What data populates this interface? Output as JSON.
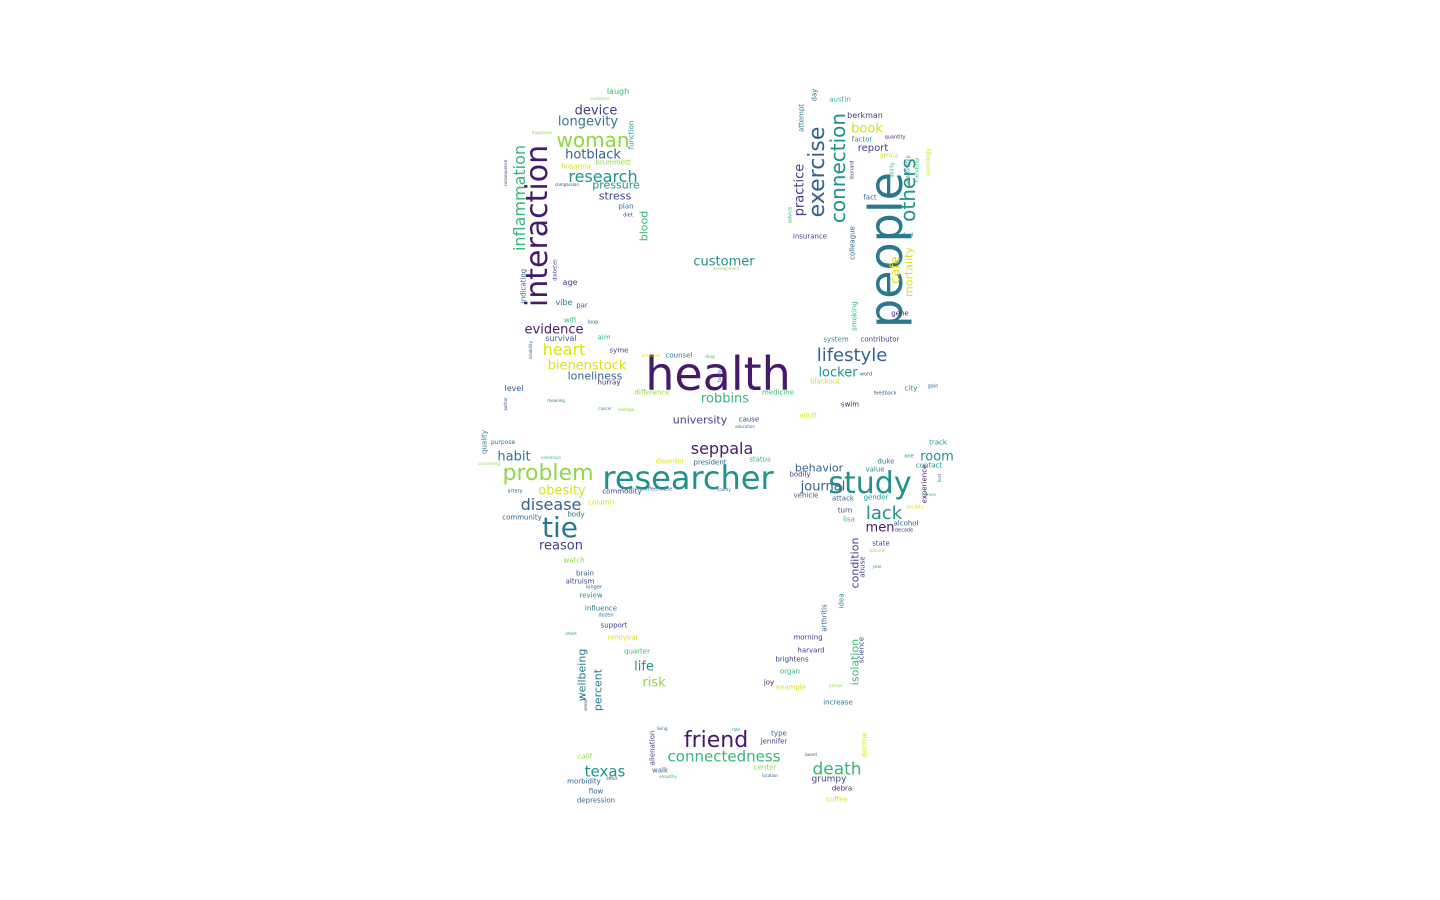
{
  "word_cloud": {
    "palette": {
      "p": "#46196b",
      "b": "#33638d",
      "t": "#21918c",
      "g": "#35b779",
      "l": "#8fd744",
      "y": "#d8e219",
      "n": "#2a788e",
      "k": "#433e85"
    },
    "words": [
      "health",
      "people",
      "researcher",
      "interaction",
      "study",
      "exercise",
      "connection",
      "tie",
      "others",
      "friend",
      "problem",
      "woman",
      "lifestyle",
      "inflammation",
      "research",
      "heart",
      "lack",
      "death",
      "seppala",
      "disease",
      "connectedness",
      "texas",
      "customer",
      "bienenstock",
      "evidence",
      "device",
      "longevity",
      "hotblack",
      "practice",
      "book",
      "mortality",
      "cafe",
      "robbins",
      "locker",
      "journal",
      "room",
      "obesity",
      "habit",
      "reason",
      "life",
      "risk",
      "loneliness",
      "pressure",
      "stress",
      "blood",
      "university",
      "men",
      "behavior",
      "condition",
      "isolation",
      "wellbeing",
      "percent",
      "report",
      "laugh",
      "function",
      "plan",
      "diet",
      "age",
      "vibe",
      "par",
      "wifi",
      "loop",
      "survival",
      "aim",
      "syme",
      "level",
      "hurray",
      "difference",
      "counsel",
      "medicine",
      "cause",
      "education",
      "blackout",
      "adult",
      "swim",
      "city",
      "gain",
      "feedback",
      "word",
      "system",
      "contributor",
      "gene",
      "smoking",
      "colleague",
      "insurance",
      "advice",
      "attempt",
      "day",
      "austin",
      "berkman",
      "factor",
      "quantity",
      "ymca",
      "ability",
      "leonard",
      "fact",
      "stanford",
      "sociology",
      "friendship",
      "relationship",
      "development",
      "indicating",
      "diabetes",
      "disability",
      "author",
      "meaning",
      "cancer",
      "damage",
      "brummett",
      "hosanna",
      "compassion",
      "consequence",
      "happiness",
      "american",
      "drug",
      "family",
      "quality",
      "purpose",
      "counseling",
      "unmerson",
      "artery",
      "column",
      "body",
      "community",
      "commodity",
      "status",
      "president",
      "disorder",
      "coffeehouse",
      "county",
      "bodily",
      "vehicle",
      "attack",
      "gender",
      "value",
      "duke",
      "experience",
      "contact",
      "track",
      "one",
      "host",
      "society",
      "illness",
      "turn",
      "lisa",
      "alcohol",
      "decade",
      "state",
      "toronto",
      "abuse",
      "year",
      "watch",
      "brain",
      "altruism",
      "longer",
      "review",
      "influence",
      "dozen",
      "support",
      "share",
      "nineyear",
      "quarter",
      "morning",
      "arthritis",
      "idea",
      "harvard",
      "science",
      "brightens",
      "organ",
      "joy",
      "example",
      "jimson",
      "increase",
      "living",
      "alienation",
      "rate",
      "type",
      "jennifer",
      "decline",
      "board",
      "calif",
      "walk",
      "center",
      "grumpy",
      "debra",
      "coffee",
      "morbidity",
      "effect",
      "empathy",
      "location",
      "flow",
      "depression",
      "sense",
      "customer"
    ]
  }
}
